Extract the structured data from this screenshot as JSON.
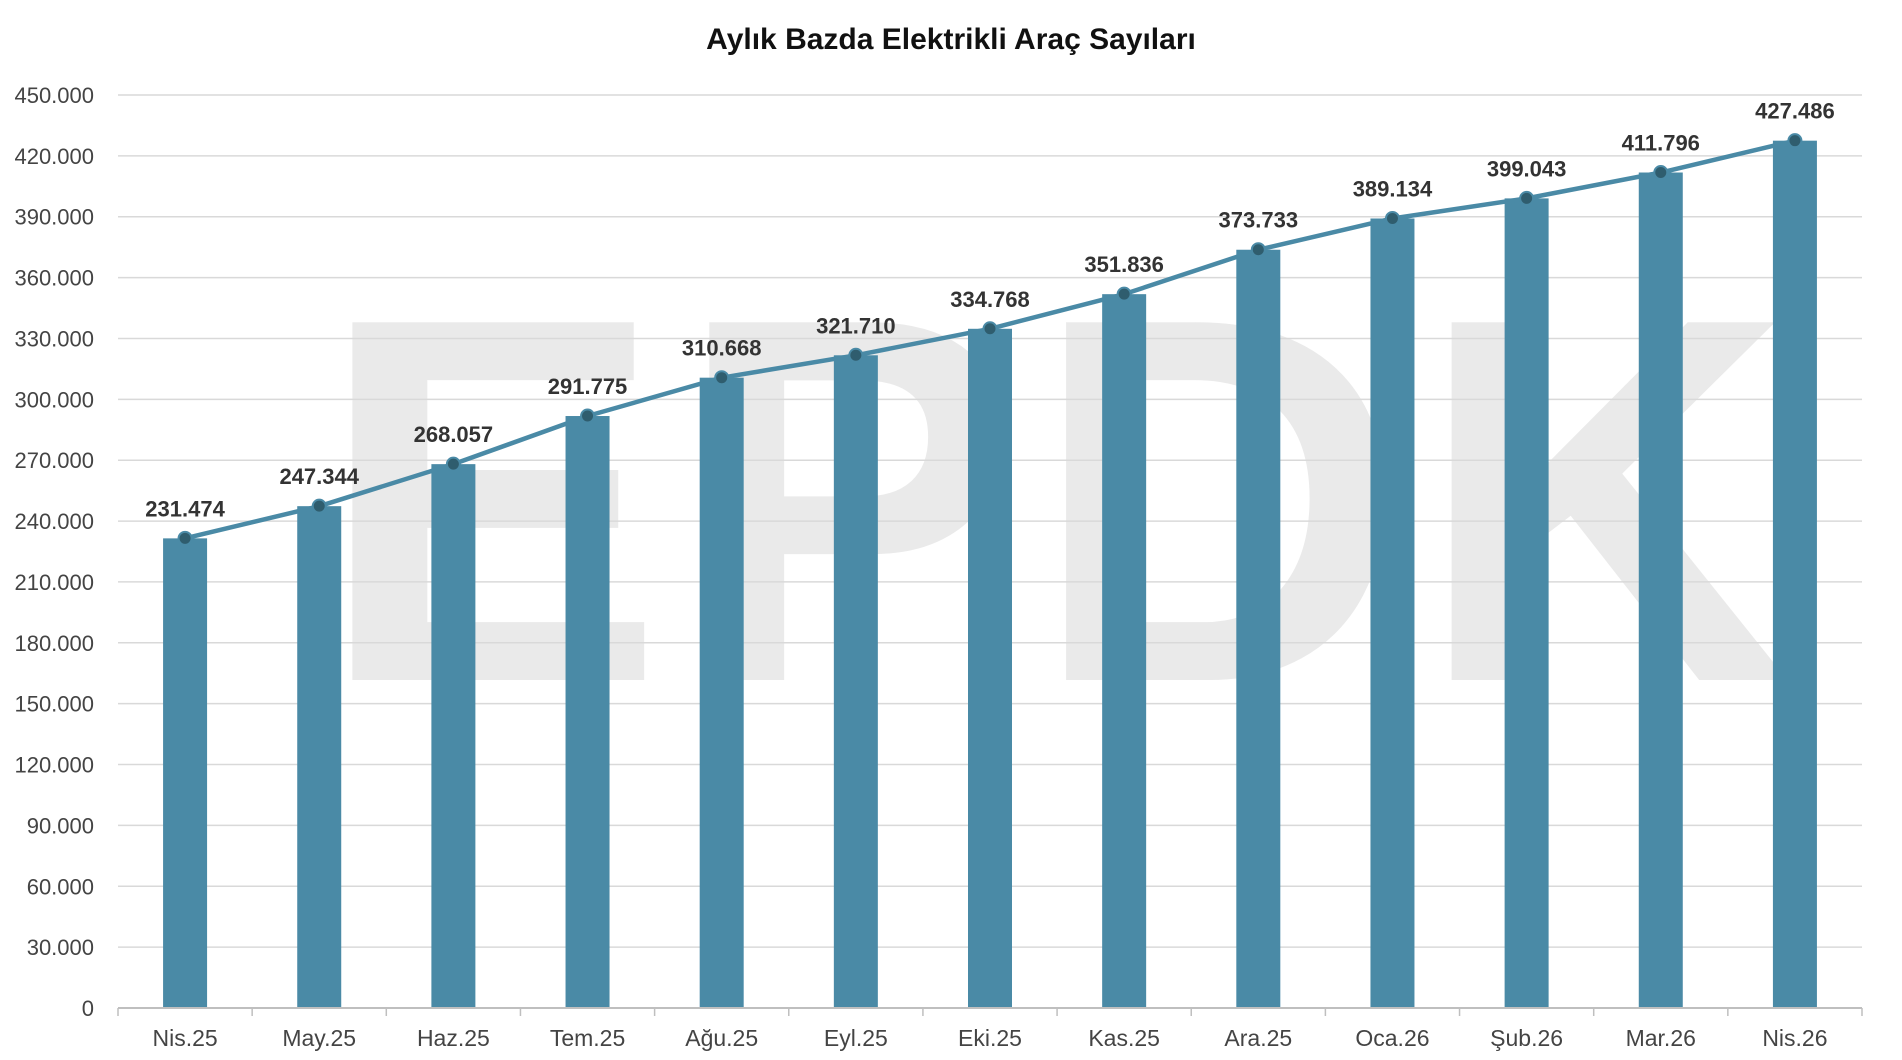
{
  "chart_data": {
    "type": "bar",
    "title": "Aylık Bazda Elektrikli Araç Sayıları",
    "xlabel": "",
    "ylabel": "",
    "categories": [
      "Nis.25",
      "May.25",
      "Haz.25",
      "Tem.25",
      "Ağu.25",
      "Eyl.25",
      "Eki.25",
      "Kas.25",
      "Ara.25",
      "Oca.26",
      "Şub.26",
      "Mar.26",
      "Nis.26"
    ],
    "values": [
      231474,
      247344,
      268057,
      291775,
      310668,
      321710,
      334768,
      351836,
      373733,
      389134,
      399043,
      411796,
      427486
    ],
    "value_labels": [
      "231.474",
      "247.344",
      "268.057",
      "291.775",
      "310.668",
      "321.710",
      "334.768",
      "351.836",
      "373.733",
      "389.134",
      "399.043",
      "411.796",
      "427.486"
    ],
    "overlay_line": true,
    "ylim": [
      0,
      450000
    ],
    "yticks": [
      0,
      30000,
      60000,
      90000,
      120000,
      150000,
      180000,
      210000,
      240000,
      270000,
      300000,
      330000,
      360000,
      390000,
      420000,
      450000
    ],
    "ytick_labels": [
      "0",
      "30.000",
      "60.000",
      "90.000",
      "120.000",
      "150.000",
      "180.000",
      "210.000",
      "240.000",
      "270.000",
      "300.000",
      "330.000",
      "360.000",
      "390.000",
      "420.000",
      "450.000"
    ],
    "grid": true,
    "legend": "none",
    "colors": {
      "bar": "#4a8aa6",
      "line": "#4a8aa6",
      "marker": "#2f5d6e",
      "grid": "#d9d9d9",
      "axis": "#bfbfbf"
    },
    "watermark": "EPDK"
  }
}
